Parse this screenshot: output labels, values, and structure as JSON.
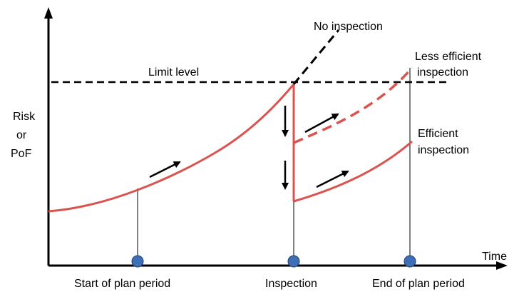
{
  "y_axis_label": [
    "Risk",
    "or",
    "PoF"
  ],
  "x_axis_label": "Time",
  "limit_label": "Limit level",
  "no_inspection_label": "No inspection",
  "less_efficient_label": [
    "Less efficient",
    "inspection"
  ],
  "efficient_label": [
    "Efficient",
    "inspection"
  ],
  "timeline_markers": [
    {
      "label": "Start of plan period"
    },
    {
      "label": "Inspection"
    },
    {
      "label": "End of plan period"
    }
  ],
  "colors": {
    "risk_curve": "#d9534f",
    "marker_fill": "#3e6fb5",
    "axis": "#000000"
  }
}
